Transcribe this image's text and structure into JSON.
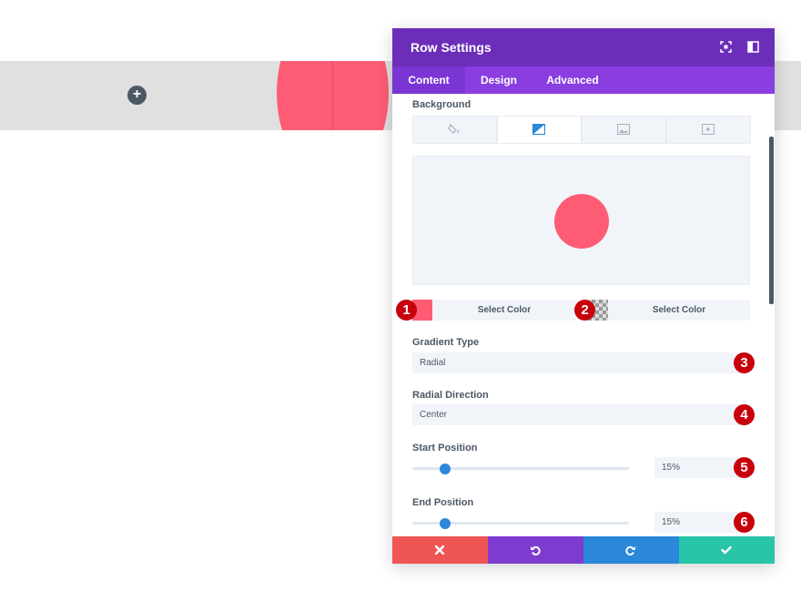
{
  "canvas": {
    "add_icon": "plus-icon",
    "circle_color": "#fe5c74",
    "band_color": "#e0e0e0"
  },
  "modal": {
    "title": "Row Settings",
    "header_icons": [
      "fullscreen-icon",
      "split-view-icon"
    ],
    "tabs": [
      {
        "label": "Content",
        "active": true
      },
      {
        "label": "Design",
        "active": false
      },
      {
        "label": "Advanced",
        "active": false
      }
    ],
    "colors": {
      "header": "#6c2eb9",
      "tabs": "#8a3ee0",
      "accent": "#2b87da"
    }
  },
  "background": {
    "label": "Background",
    "type_tabs": [
      "paint-bucket-icon",
      "gradient-icon",
      "image-icon",
      "video-icon"
    ],
    "active_type": "gradient-icon",
    "preview_color": "#fe5c74",
    "color_stops": [
      {
        "swatch": "#fe5c74",
        "label": "Select Color",
        "badge": "1"
      },
      {
        "swatch": "transparent",
        "label": "Select Color",
        "badge": "2"
      }
    ]
  },
  "gradient_type": {
    "label": "Gradient Type",
    "value": "Radial",
    "badge": "3"
  },
  "radial_direction": {
    "label": "Radial Direction",
    "value": "Center",
    "badge": "4"
  },
  "start_position": {
    "label": "Start Position",
    "value": "15%",
    "level": 0.15,
    "badge": "5"
  },
  "end_position": {
    "label": "End Position",
    "value": "15%",
    "level": 0.15,
    "badge": "6"
  },
  "footer": {
    "buttons": [
      {
        "name": "cancel-button",
        "icon": "close-icon",
        "color": "#ef5555"
      },
      {
        "name": "undo-button",
        "icon": "undo-icon",
        "color": "#7e3bd0"
      },
      {
        "name": "redo-button",
        "icon": "redo-icon",
        "color": "#2b87da"
      },
      {
        "name": "save-button",
        "icon": "check-icon",
        "color": "#29c4a9"
      }
    ]
  }
}
